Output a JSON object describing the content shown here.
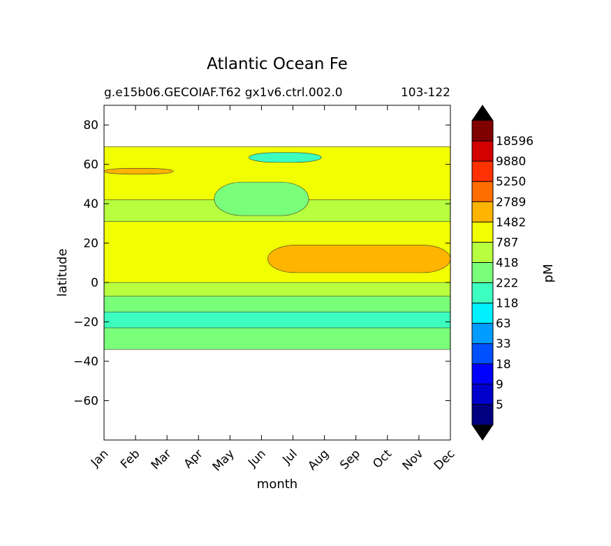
{
  "chart_data": {
    "type": "heatmap",
    "subtype": "filled-contour",
    "title": "Atlantic Ocean Fe",
    "subtitle_left": "g.e15b06.GECOIAF.T62 gx1v6.ctrl.002.0",
    "subtitle_right": "103-122",
    "xlabel": "month",
    "ylabel": "latitude",
    "x_ticks": [
      "Jan",
      "Feb",
      "Mar",
      "Apr",
      "May",
      "Jun",
      "Jul",
      "Aug",
      "Sep",
      "Oct",
      "Nov",
      "Dec"
    ],
    "y_ticks": [
      80,
      60,
      40,
      20,
      0,
      -20,
      -40,
      -60
    ],
    "ylim": [
      -80,
      90
    ],
    "data_lat_range": [
      -34,
      69
    ],
    "colorbar": {
      "label": "pM",
      "tick_labels": [
        "5",
        "9",
        "18",
        "33",
        "63",
        "118",
        "222",
        "418",
        "787",
        "1482",
        "2789",
        "5250",
        "9880",
        "18596"
      ],
      "extend": "both",
      "colors": [
        "#000080",
        "#0000cd",
        "#0000ff",
        "#0050ff",
        "#009cff",
        "#00f0ff",
        "#3cffbf",
        "#7aff7a",
        "#b7ff3f",
        "#f2ff00",
        "#ffb400",
        "#ff6c00",
        "#ff3100",
        "#d20000",
        "#800000"
      ],
      "extend_colors": [
        "#000000",
        "#000000"
      ]
    },
    "regions": [
      {
        "level": 1482,
        "color": "#f2ff00",
        "months": [
          1,
          12
        ],
        "lat_range": [
          -1,
          69
        ],
        "note": "background yellow band"
      },
      {
        "level": 787,
        "color": "#b7ff3f",
        "months": [
          1,
          12
        ],
        "lat_range": [
          -8,
          0
        ]
      },
      {
        "level": 787,
        "color": "#b7ff3f",
        "months": [
          1,
          12
        ],
        "lat_range": [
          31,
          42
        ]
      },
      {
        "level": 418,
        "color": "#7aff7a",
        "months": [
          1,
          12
        ],
        "lat_range": [
          -34,
          -7
        ]
      },
      {
        "level": 222,
        "color": "#3cffbf",
        "months": [
          1,
          12
        ],
        "lat_range": [
          -23,
          -15
        ]
      },
      {
        "level": 418,
        "color": "#7aff7a",
        "months": [
          4.5,
          7.5
        ],
        "lat_range": [
          34,
          51
        ]
      },
      {
        "level": 222,
        "color": "#3cffbf",
        "months": [
          5.6,
          7.9
        ],
        "lat_range": [
          61,
          66
        ]
      },
      {
        "level": 2789,
        "color": "#ffb400",
        "months": [
          6.2,
          12
        ],
        "lat_range": [
          5,
          19
        ]
      },
      {
        "level": 2789,
        "color": "#ffb400",
        "months": [
          1,
          3.2
        ],
        "lat_range": [
          55,
          58
        ]
      }
    ]
  }
}
